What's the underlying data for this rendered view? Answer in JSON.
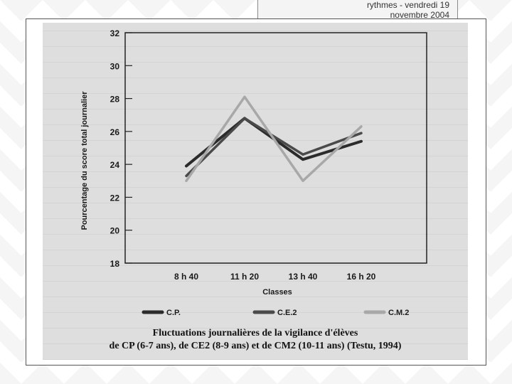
{
  "header": {
    "line1": "rythmes - vendredi 19",
    "line2": "novembre 2004"
  },
  "caption": {
    "line1": "Fluctuations journalières de la vigilance d'élèves",
    "line2": "de CP (6-7 ans), de CE2 (8-9 ans) et de CM2 (10-11 ans) (Testu, 1994)"
  },
  "colors": {
    "cp": "#2b2b2b",
    "ce2": "#4a4a4a",
    "cm2": "#a8a8a8"
  },
  "chart_data": {
    "type": "line",
    "xlabel": "Classes",
    "ylabel": "Pourcentage du score total journalier",
    "categories": [
      "8 h 40",
      "11 h 20",
      "13 h 40",
      "16 h 20"
    ],
    "ylim": [
      18,
      32
    ],
    "yticks": [
      18,
      20,
      22,
      24,
      26,
      28,
      30,
      32
    ],
    "grid": false,
    "legend_position": "bottom",
    "series": [
      {
        "name": "C.P.",
        "values": [
          23.9,
          26.8,
          24.3,
          25.4
        ]
      },
      {
        "name": "C.E.2",
        "values": [
          23.3,
          26.8,
          24.6,
          25.9
        ]
      },
      {
        "name": "C.M.2",
        "values": [
          23.0,
          28.1,
          23.0,
          26.3
        ]
      }
    ]
  }
}
